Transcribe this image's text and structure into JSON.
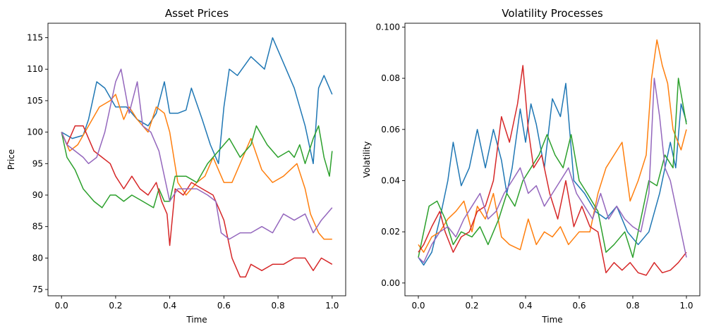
{
  "chart_data": [
    {
      "type": "line",
      "title": "Asset Prices",
      "xlabel": "Time",
      "ylabel": "Price",
      "xlim": [
        -0.05,
        1.05
      ],
      "ylim": [
        74.0,
        117.3
      ],
      "xticks": [
        0.0,
        0.2,
        0.4,
        0.6,
        0.8,
        1.0
      ],
      "xtick_labels": [
        "0.0",
        "0.2",
        "0.4",
        "0.6",
        "0.8",
        "1.0"
      ],
      "yticks": [
        75,
        80,
        85,
        90,
        95,
        100,
        105,
        110,
        115
      ],
      "ytick_labels": [
        "75",
        "80",
        "85",
        "90",
        "95",
        "100",
        "105",
        "110",
        "115"
      ],
      "grid": false,
      "series": [
        {
          "color": "#1f77b4",
          "x": [
            0.0,
            0.04,
            0.08,
            0.1,
            0.13,
            0.16,
            0.2,
            0.24,
            0.28,
            0.32,
            0.35,
            0.38,
            0.4,
            0.43,
            0.46,
            0.48,
            0.52,
            0.55,
            0.58,
            0.6,
            0.62,
            0.65,
            0.7,
            0.75,
            0.78,
            0.82,
            0.86,
            0.9,
            0.93,
            0.95,
            0.97,
            1.0
          ],
          "y": [
            100,
            99,
            99.5,
            102,
            108,
            107,
            104,
            104,
            102,
            101,
            103,
            108,
            103,
            103,
            103.5,
            107,
            102,
            98,
            95,
            104,
            110,
            109,
            112,
            110,
            115,
            111,
            107,
            101,
            95,
            107,
            109,
            106
          ]
        },
        {
          "color": "#ff7f0e",
          "x": [
            0.0,
            0.03,
            0.06,
            0.1,
            0.14,
            0.18,
            0.2,
            0.23,
            0.25,
            0.28,
            0.32,
            0.35,
            0.38,
            0.4,
            0.43,
            0.46,
            0.5,
            0.53,
            0.56,
            0.6,
            0.63,
            0.67,
            0.7,
            0.74,
            0.78,
            0.82,
            0.87,
            0.9,
            0.92,
            0.95,
            0.97,
            1.0
          ],
          "y": [
            100,
            97,
            98,
            101,
            104,
            105,
            106,
            102,
            104,
            102,
            100,
            104,
            103,
            100,
            92,
            90,
            92,
            93,
            96,
            92,
            92,
            96,
            99,
            94,
            92,
            93,
            95,
            91,
            87,
            84,
            83,
            83
          ]
        },
        {
          "color": "#2ca02c",
          "x": [
            0.0,
            0.02,
            0.05,
            0.08,
            0.12,
            0.15,
            0.18,
            0.2,
            0.23,
            0.26,
            0.3,
            0.34,
            0.36,
            0.38,
            0.4,
            0.42,
            0.46,
            0.5,
            0.54,
            0.58,
            0.62,
            0.66,
            0.7,
            0.72,
            0.76,
            0.8,
            0.84,
            0.86,
            0.88,
            0.9,
            0.93,
            0.95,
            0.97,
            0.99,
            1.0
          ],
          "y": [
            100,
            96,
            94,
            91,
            89,
            88,
            90,
            90,
            89,
            90,
            89,
            88,
            91,
            89,
            89,
            93,
            93,
            92,
            95,
            97,
            99,
            96,
            98,
            101,
            98,
            96,
            97,
            96,
            98,
            95,
            99,
            101,
            96,
            93,
            97
          ]
        },
        {
          "color": "#d62728",
          "x": [
            0.0,
            0.02,
            0.05,
            0.08,
            0.1,
            0.12,
            0.15,
            0.18,
            0.2,
            0.23,
            0.26,
            0.29,
            0.32,
            0.35,
            0.37,
            0.39,
            0.4,
            0.42,
            0.45,
            0.48,
            0.52,
            0.56,
            0.6,
            0.63,
            0.66,
            0.68,
            0.7,
            0.74,
            0.78,
            0.82,
            0.86,
            0.9,
            0.93,
            0.96,
            1.0
          ],
          "y": [
            100,
            98,
            101,
            101,
            99,
            97,
            96,
            95,
            93,
            91,
            93,
            91,
            90,
            92,
            89,
            87,
            82,
            91,
            90,
            92,
            91,
            90,
            86,
            80,
            77,
            77,
            79,
            78,
            79,
            79,
            80,
            80,
            78,
            80,
            79
          ]
        },
        {
          "color": "#9467bd",
          "x": [
            0.0,
            0.02,
            0.05,
            0.08,
            0.1,
            0.13,
            0.16,
            0.2,
            0.22,
            0.25,
            0.28,
            0.3,
            0.33,
            0.36,
            0.4,
            0.43,
            0.47,
            0.5,
            0.54,
            0.57,
            0.59,
            0.62,
            0.66,
            0.7,
            0.74,
            0.78,
            0.82,
            0.86,
            0.9,
            0.93,
            0.96,
            1.0
          ],
          "y": [
            100,
            98,
            97,
            96,
            95,
            96,
            100,
            108,
            110,
            103,
            108,
            101,
            100,
            97,
            89,
            91,
            91,
            91,
            90,
            89,
            84,
            83,
            84,
            84,
            85,
            84,
            87,
            86,
            87,
            84,
            86,
            88
          ]
        }
      ]
    },
    {
      "type": "line",
      "title": "Volatility Processes",
      "xlabel": "Time",
      "ylabel": "Volatility",
      "xlim": [
        -0.05,
        1.05
      ],
      "ylim": [
        -0.005,
        0.1015
      ],
      "xticks": [
        0.0,
        0.2,
        0.4,
        0.6,
        0.8,
        1.0
      ],
      "xtick_labels": [
        "0.0",
        "0.2",
        "0.4",
        "0.6",
        "0.8",
        "1.0"
      ],
      "yticks": [
        0.0,
        0.02,
        0.04,
        0.06,
        0.08,
        0.1
      ],
      "ytick_labels": [
        "0.00",
        "0.02",
        "0.04",
        "0.06",
        "0.08",
        "0.100"
      ],
      "grid": false,
      "series": [
        {
          "color": "#1f77b4",
          "x": [
            0.0,
            0.02,
            0.05,
            0.08,
            0.11,
            0.13,
            0.16,
            0.19,
            0.22,
            0.25,
            0.28,
            0.31,
            0.33,
            0.35,
            0.38,
            0.4,
            0.42,
            0.44,
            0.47,
            0.5,
            0.53,
            0.55,
            0.58,
            0.62,
            0.66,
            0.7,
            0.74,
            0.78,
            0.82,
            0.86,
            0.9,
            0.94,
            0.96,
            0.98,
            1.0
          ],
          "y": [
            0.01,
            0.007,
            0.012,
            0.025,
            0.04,
            0.055,
            0.038,
            0.045,
            0.06,
            0.045,
            0.06,
            0.048,
            0.035,
            0.045,
            0.068,
            0.055,
            0.07,
            0.062,
            0.045,
            0.072,
            0.065,
            0.078,
            0.04,
            0.035,
            0.028,
            0.025,
            0.03,
            0.02,
            0.015,
            0.02,
            0.035,
            0.055,
            0.045,
            0.07,
            0.063
          ]
        },
        {
          "color": "#ff7f0e",
          "x": [
            0.0,
            0.02,
            0.05,
            0.08,
            0.11,
            0.14,
            0.17,
            0.2,
            0.22,
            0.25,
            0.28,
            0.31,
            0.34,
            0.38,
            0.41,
            0.44,
            0.47,
            0.5,
            0.53,
            0.56,
            0.6,
            0.64,
            0.67,
            0.7,
            0.73,
            0.76,
            0.79,
            0.82,
            0.85,
            0.87,
            0.89,
            0.91,
            0.93,
            0.95,
            0.98,
            1.0
          ],
          "y": [
            0.015,
            0.012,
            0.018,
            0.02,
            0.025,
            0.028,
            0.032,
            0.02,
            0.03,
            0.025,
            0.035,
            0.018,
            0.015,
            0.013,
            0.025,
            0.015,
            0.02,
            0.018,
            0.022,
            0.015,
            0.02,
            0.02,
            0.035,
            0.045,
            0.05,
            0.055,
            0.032,
            0.04,
            0.05,
            0.08,
            0.095,
            0.085,
            0.078,
            0.06,
            0.052,
            0.06
          ]
        },
        {
          "color": "#2ca02c",
          "x": [
            0.0,
            0.02,
            0.04,
            0.07,
            0.1,
            0.13,
            0.16,
            0.2,
            0.23,
            0.26,
            0.3,
            0.33,
            0.36,
            0.39,
            0.42,
            0.45,
            0.48,
            0.51,
            0.54,
            0.57,
            0.6,
            0.63,
            0.67,
            0.7,
            0.73,
            0.77,
            0.8,
            0.83,
            0.86,
            0.89,
            0.92,
            0.95,
            0.97,
            1.0
          ],
          "y": [
            0.01,
            0.02,
            0.03,
            0.032,
            0.025,
            0.015,
            0.02,
            0.018,
            0.022,
            0.015,
            0.025,
            0.035,
            0.03,
            0.04,
            0.045,
            0.05,
            0.058,
            0.05,
            0.045,
            0.058,
            0.04,
            0.035,
            0.028,
            0.012,
            0.015,
            0.02,
            0.01,
            0.025,
            0.04,
            0.038,
            0.05,
            0.045,
            0.08,
            0.062
          ]
        },
        {
          "color": "#d62728",
          "x": [
            0.0,
            0.02,
            0.05,
            0.08,
            0.1,
            0.13,
            0.16,
            0.19,
            0.22,
            0.25,
            0.28,
            0.31,
            0.34,
            0.37,
            0.39,
            0.41,
            0.43,
            0.46,
            0.49,
            0.52,
            0.55,
            0.58,
            0.61,
            0.64,
            0.67,
            0.7,
            0.73,
            0.76,
            0.79,
            0.82,
            0.85,
            0.88,
            0.91,
            0.94,
            0.97,
            1.0
          ],
          "y": [
            0.012,
            0.015,
            0.022,
            0.028,
            0.02,
            0.012,
            0.018,
            0.02,
            0.028,
            0.03,
            0.04,
            0.065,
            0.055,
            0.07,
            0.085,
            0.06,
            0.045,
            0.05,
            0.035,
            0.025,
            0.04,
            0.022,
            0.03,
            0.022,
            0.02,
            0.004,
            0.008,
            0.005,
            0.008,
            0.004,
            0.003,
            0.008,
            0.004,
            0.005,
            0.008,
            0.012
          ]
        },
        {
          "color": "#9467bd",
          "x": [
            0.0,
            0.02,
            0.05,
            0.08,
            0.11,
            0.14,
            0.17,
            0.2,
            0.23,
            0.26,
            0.29,
            0.32,
            0.35,
            0.38,
            0.41,
            0.44,
            0.47,
            0.5,
            0.53,
            0.56,
            0.59,
            0.62,
            0.65,
            0.68,
            0.71,
            0.74,
            0.77,
            0.8,
            0.83,
            0.86,
            0.88,
            0.9,
            0.92,
            0.94,
            0.97,
            1.0
          ],
          "y": [
            0.01,
            0.008,
            0.015,
            0.02,
            0.022,
            0.018,
            0.025,
            0.03,
            0.035,
            0.025,
            0.028,
            0.035,
            0.04,
            0.045,
            0.035,
            0.038,
            0.03,
            0.035,
            0.04,
            0.045,
            0.035,
            0.03,
            0.025,
            0.035,
            0.025,
            0.03,
            0.025,
            0.022,
            0.02,
            0.035,
            0.08,
            0.065,
            0.045,
            0.04,
            0.025,
            0.01
          ]
        }
      ]
    }
  ]
}
